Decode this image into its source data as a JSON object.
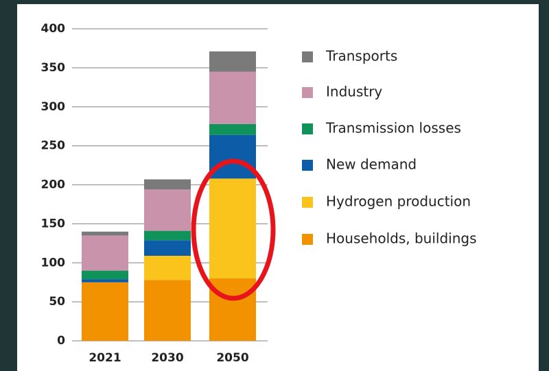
{
  "chart_data": {
    "type": "stacked_bar",
    "categories": [
      "2021",
      "2030",
      "2050"
    ],
    "series": [
      {
        "name": "Households, buildings",
        "color": "#f39200",
        "values": [
          75,
          78,
          80
        ]
      },
      {
        "name": "Hydrogen production",
        "color": "#fbc41c",
        "values": [
          0,
          31,
          128
        ]
      },
      {
        "name": "New demand",
        "color": "#0d5ca8",
        "values": [
          4,
          20,
          56
        ]
      },
      {
        "name": "Transmission losses",
        "color": "#10935a",
        "values": [
          11,
          12,
          14
        ]
      },
      {
        "name": "Industry",
        "color": "#c993ab",
        "values": [
          45,
          53,
          67
        ]
      },
      {
        "name": "Transports",
        "color": "#7a7a7a",
        "values": [
          5,
          13,
          26
        ]
      }
    ],
    "ylim": [
      0,
      400
    ],
    "yticks": [
      0,
      50,
      100,
      150,
      200,
      250,
      300,
      350,
      400
    ],
    "grid": true
  }
}
